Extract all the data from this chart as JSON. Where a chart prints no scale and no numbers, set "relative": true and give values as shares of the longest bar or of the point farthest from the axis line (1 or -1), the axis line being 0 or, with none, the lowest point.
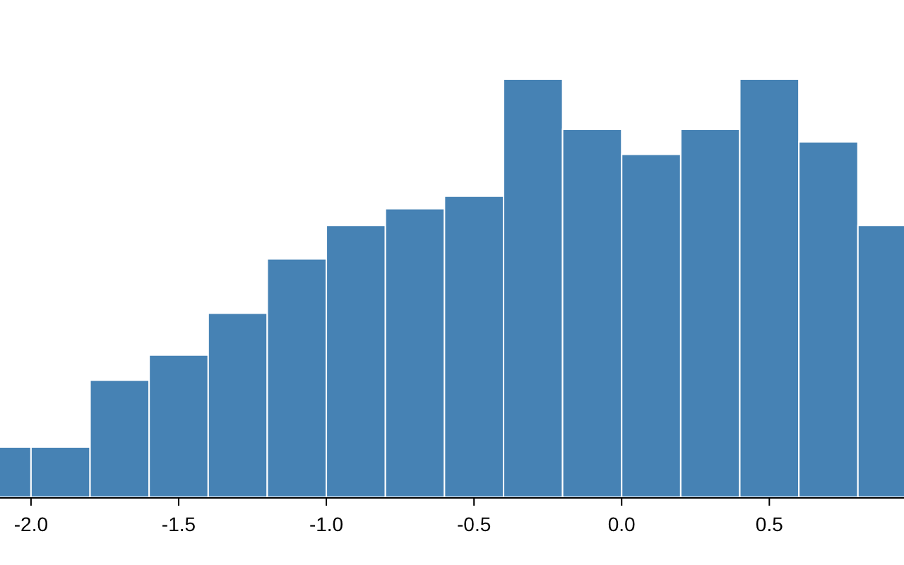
{
  "chart_data": {
    "type": "bar",
    "relative": true,
    "color": "#4682b4",
    "x": [
      -2.1,
      -1.9,
      -1.7,
      -1.5,
      -1.3,
      -1.1,
      -0.9,
      -0.7,
      -0.5,
      -0.3,
      -0.1,
      0.1,
      0.3,
      0.5,
      0.7,
      0.9
    ],
    "values": [
      0.12,
      0.12,
      0.28,
      0.34,
      0.44,
      0.57,
      0.65,
      0.69,
      0.72,
      1,
      0.88,
      0.82,
      0.88,
      1,
      0.85,
      0.65
    ],
    "xlim": [
      -2.105,
      0.956
    ],
    "xticks": [
      {
        "value": -2,
        "label": "-2.0"
      },
      {
        "value": -1.5,
        "label": "-1.5"
      },
      {
        "value": -1,
        "label": "-1.0"
      },
      {
        "value": -0.5,
        "label": "-0.5"
      },
      {
        "value": 0,
        "label": "0.0"
      },
      {
        "value": 0.5,
        "label": "0.5"
      }
    ]
  }
}
